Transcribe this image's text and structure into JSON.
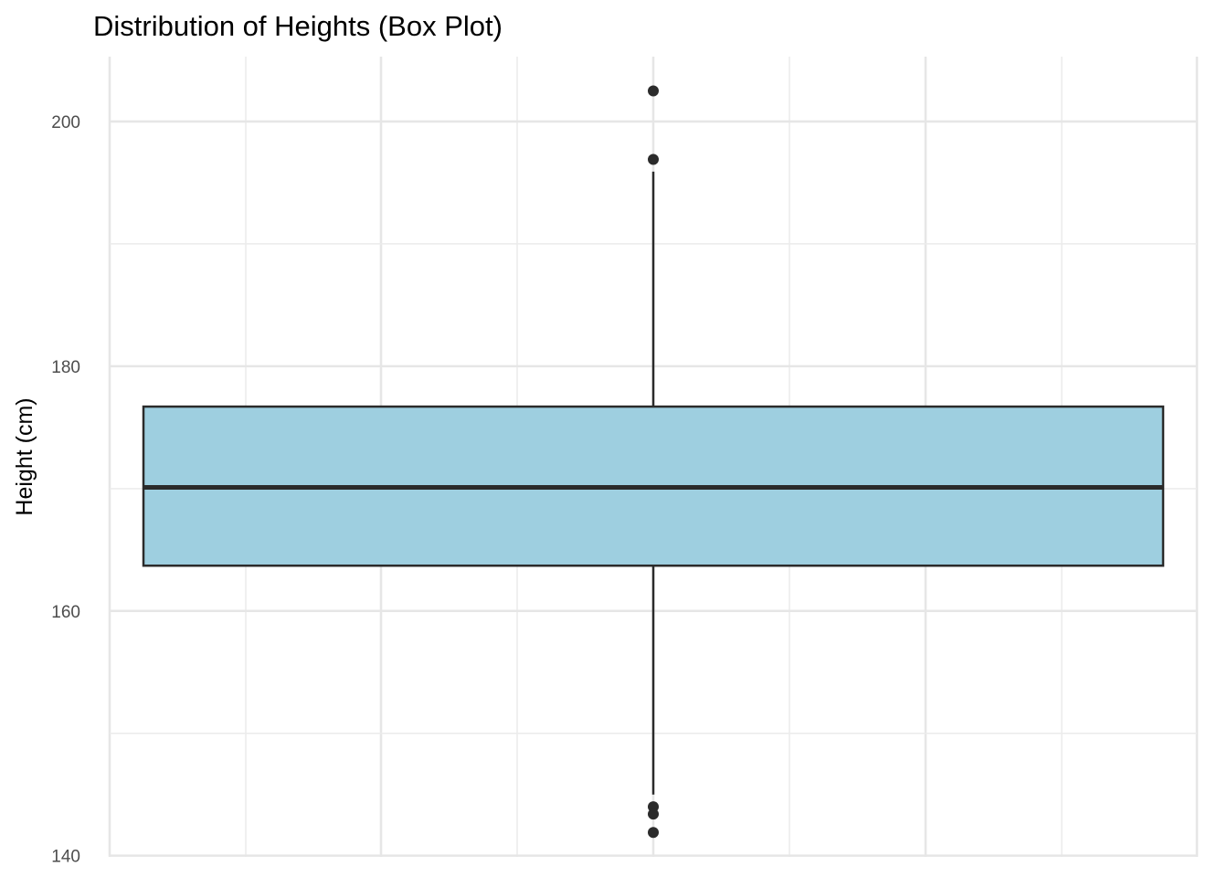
{
  "chart_data": {
    "type": "box",
    "title": "Distribution of Heights (Box Plot)",
    "xlabel": "",
    "ylabel": "Height (cm)",
    "ylim": [
      139.9,
      205.3
    ],
    "y_ticks": [
      140,
      160,
      180,
      200
    ],
    "y_minor_ticks": [
      150,
      170,
      190
    ],
    "grid": true,
    "box": {
      "q1": 163.7,
      "median": 170.1,
      "q3": 176.7,
      "whisker_low": 145.0,
      "whisker_high": 195.9,
      "fill": "#9ecfe0",
      "outline": "#2b2b2b"
    },
    "outliers": [
      202.5,
      196.9,
      144.0,
      143.4,
      141.9
    ]
  }
}
